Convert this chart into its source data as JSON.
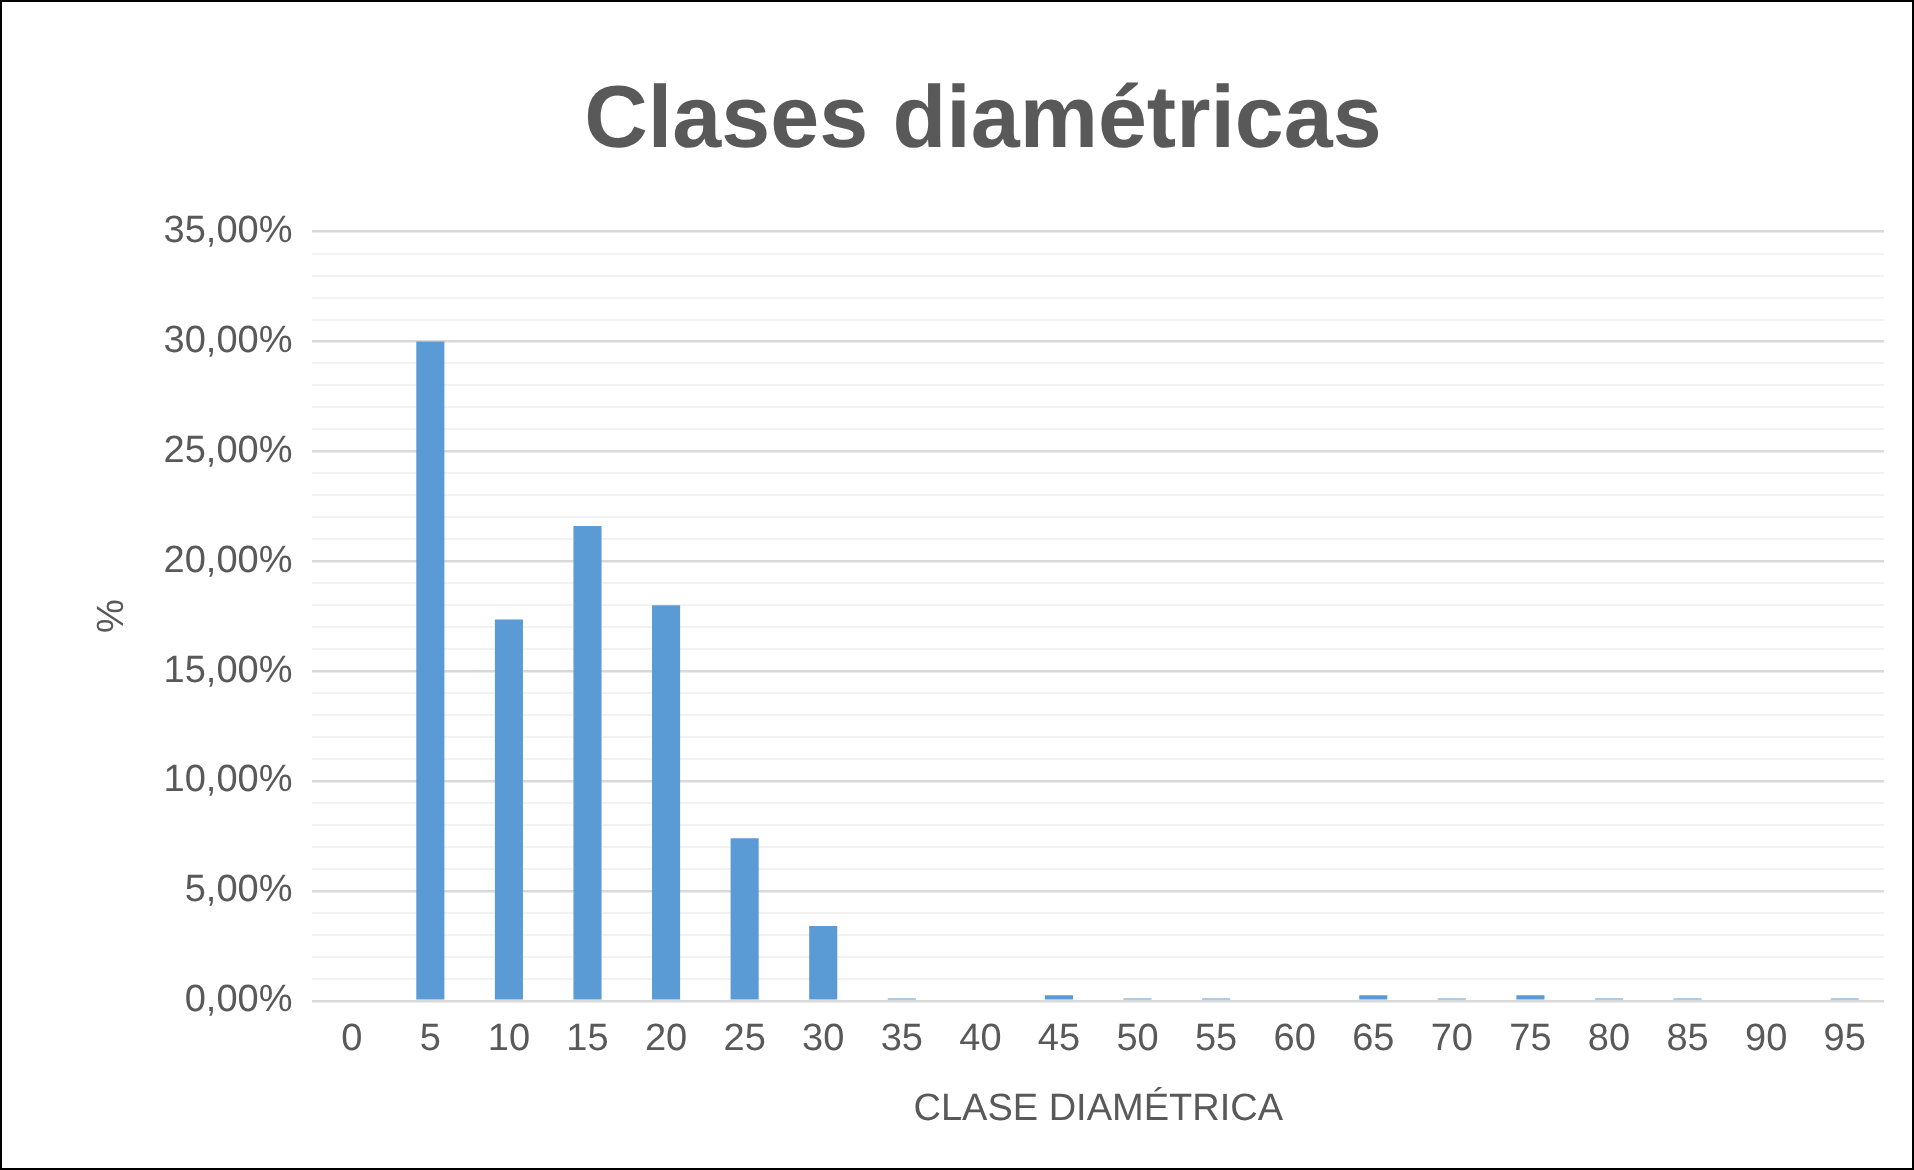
{
  "chart_data": {
    "type": "bar",
    "title": "Clases diamétricas",
    "xlabel": "CLASE DIAMÉTRICA",
    "ylabel": "%",
    "categories": [
      "0",
      "5",
      "10",
      "15",
      "20",
      "25",
      "30",
      "35",
      "40",
      "45",
      "50",
      "55",
      "60",
      "65",
      "70",
      "75",
      "80",
      "85",
      "90",
      "95"
    ],
    "values": [
      0,
      30.0,
      17.35,
      21.6,
      18.0,
      7.4,
      3.4,
      0.1,
      0,
      0.25,
      0.1,
      0.1,
      0,
      0.25,
      0.1,
      0.25,
      0.1,
      0.1,
      0,
      0.1
    ],
    "color": "#5b9bd5",
    "ylim": [
      0,
      35
    ],
    "yticks": [
      {
        "value": 0,
        "label": "0,00%"
      },
      {
        "value": 1,
        "label": null
      },
      {
        "value": 2,
        "label": null
      },
      {
        "value": 3,
        "label": null
      },
      {
        "value": 4,
        "label": null
      },
      {
        "value": 5,
        "label": "5,00%"
      },
      {
        "value": 6,
        "label": null
      },
      {
        "value": 7,
        "label": null
      },
      {
        "value": 8,
        "label": null
      },
      {
        "value": 9,
        "label": null
      },
      {
        "value": 10,
        "label": "10,00%"
      },
      {
        "value": 11,
        "label": null
      },
      {
        "value": 12,
        "label": null
      },
      {
        "value": 13,
        "label": null
      },
      {
        "value": 14,
        "label": null
      },
      {
        "value": 15,
        "label": "15,00%"
      },
      {
        "value": 16,
        "label": null
      },
      {
        "value": 17,
        "label": null
      },
      {
        "value": 18,
        "label": null
      },
      {
        "value": 19,
        "label": null
      },
      {
        "value": 20,
        "label": "20,00%"
      },
      {
        "value": 21,
        "label": null
      },
      {
        "value": 22,
        "label": null
      },
      {
        "value": 23,
        "label": null
      },
      {
        "value": 24,
        "label": null
      },
      {
        "value": 25,
        "label": "25,00%"
      },
      {
        "value": 26,
        "label": null
      },
      {
        "value": 27,
        "label": null
      },
      {
        "value": 28,
        "label": null
      },
      {
        "value": 29,
        "label": null
      },
      {
        "value": 30,
        "label": "30,00%"
      },
      {
        "value": 31,
        "label": null
      },
      {
        "value": 32,
        "label": null
      },
      {
        "value": 33,
        "label": null
      },
      {
        "value": 34,
        "label": null
      },
      {
        "value": 35,
        "label": "35,00%"
      }
    ],
    "grid": "y",
    "legend": false
  }
}
